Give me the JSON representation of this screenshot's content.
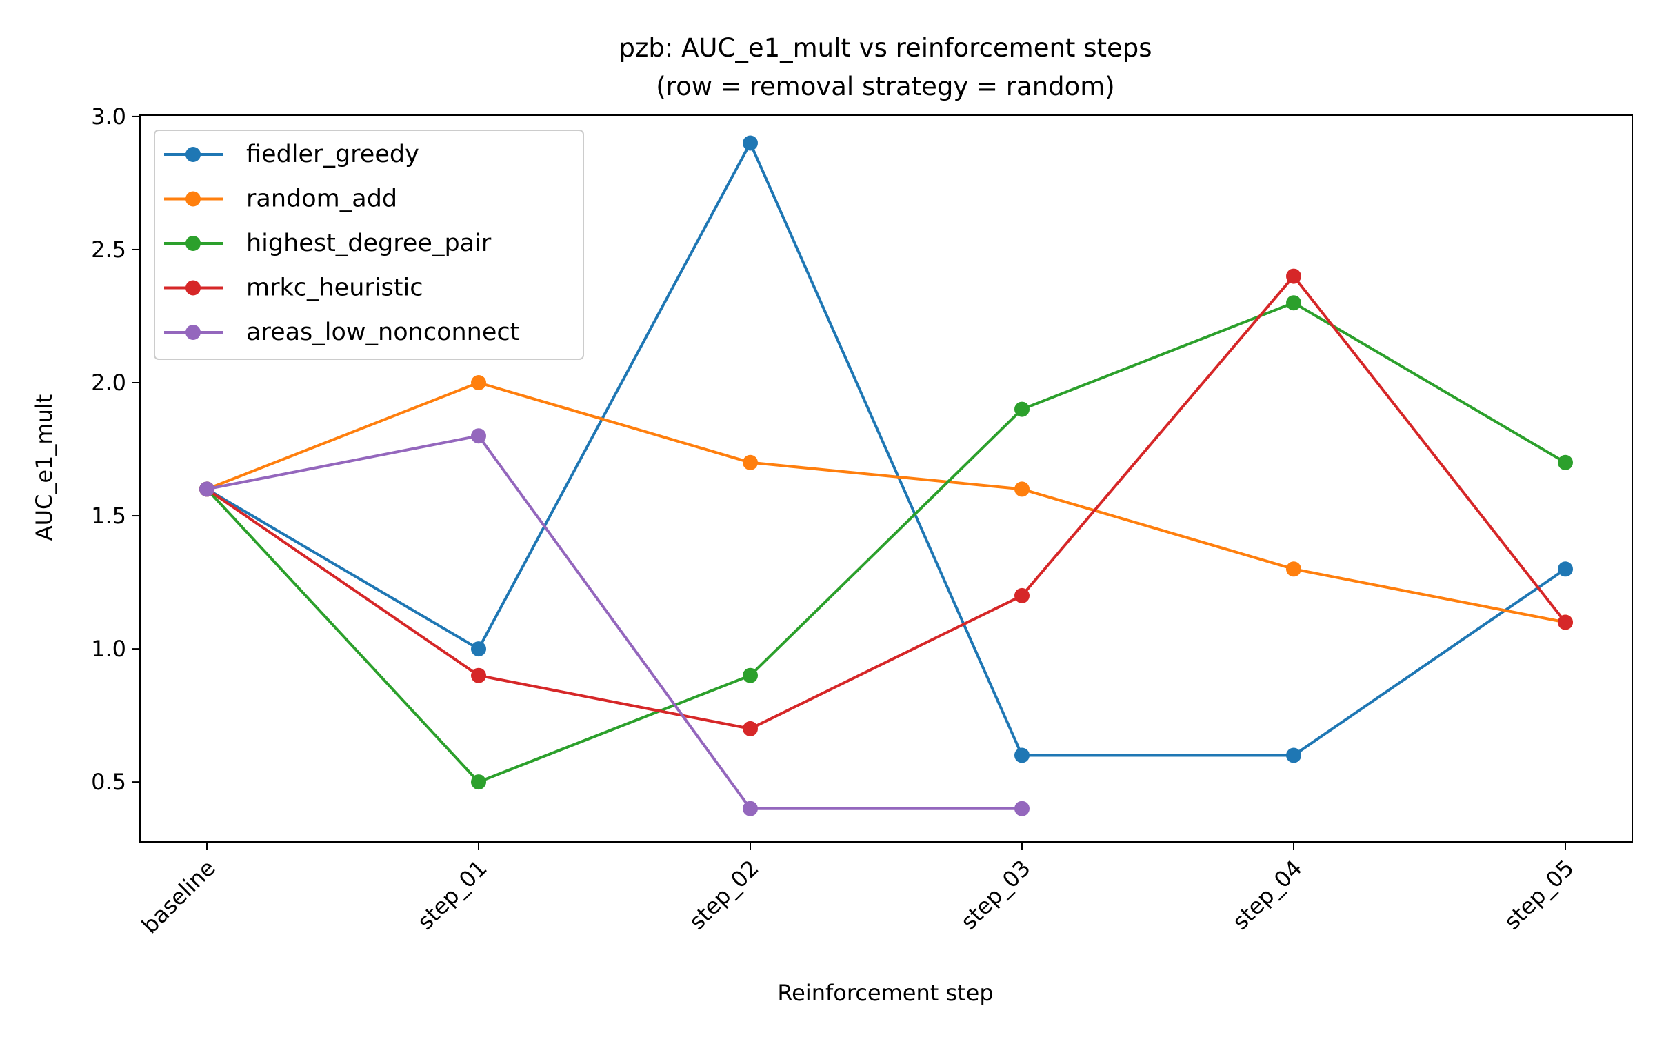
{
  "chart_data": {
    "type": "line",
    "title": "pzb: AUC_e1_mult vs reinforcement steps",
    "subtitle": "(row = removal strategy = random)",
    "xlabel": "Reinforcement step",
    "ylabel": "AUC_e1_mult",
    "categories": [
      "baseline",
      "step_01",
      "step_02",
      "step_03",
      "step_04",
      "step_05"
    ],
    "ylim": [
      0.275,
      3.005
    ],
    "yticks": [
      0.5,
      1.0,
      1.5,
      2.0,
      2.5,
      3.0
    ],
    "ytick_labels": [
      "0.5",
      "1.0",
      "1.5",
      "2.0",
      "2.5",
      "3.0"
    ],
    "grid": false,
    "legend_position": "top-left",
    "series": [
      {
        "name": "fiedler_greedy",
        "color": "#1f77b4",
        "values": [
          1.6,
          1.0,
          2.9,
          0.6,
          0.6,
          1.3
        ]
      },
      {
        "name": "random_add",
        "color": "#ff7f0e",
        "values": [
          1.6,
          2.0,
          1.7,
          1.6,
          1.3,
          1.1
        ]
      },
      {
        "name": "highest_degree_pair",
        "color": "#2ca02c",
        "values": [
          1.6,
          0.5,
          0.9,
          1.9,
          2.3,
          1.7
        ]
      },
      {
        "name": "mrkc_heuristic",
        "color": "#d62728",
        "values": [
          1.6,
          0.9,
          0.7,
          1.2,
          2.4,
          1.1
        ]
      },
      {
        "name": "areas_low_nonconnect",
        "color": "#9467bd",
        "values": [
          1.6,
          1.8,
          0.4,
          0.4,
          null,
          null
        ]
      }
    ]
  }
}
